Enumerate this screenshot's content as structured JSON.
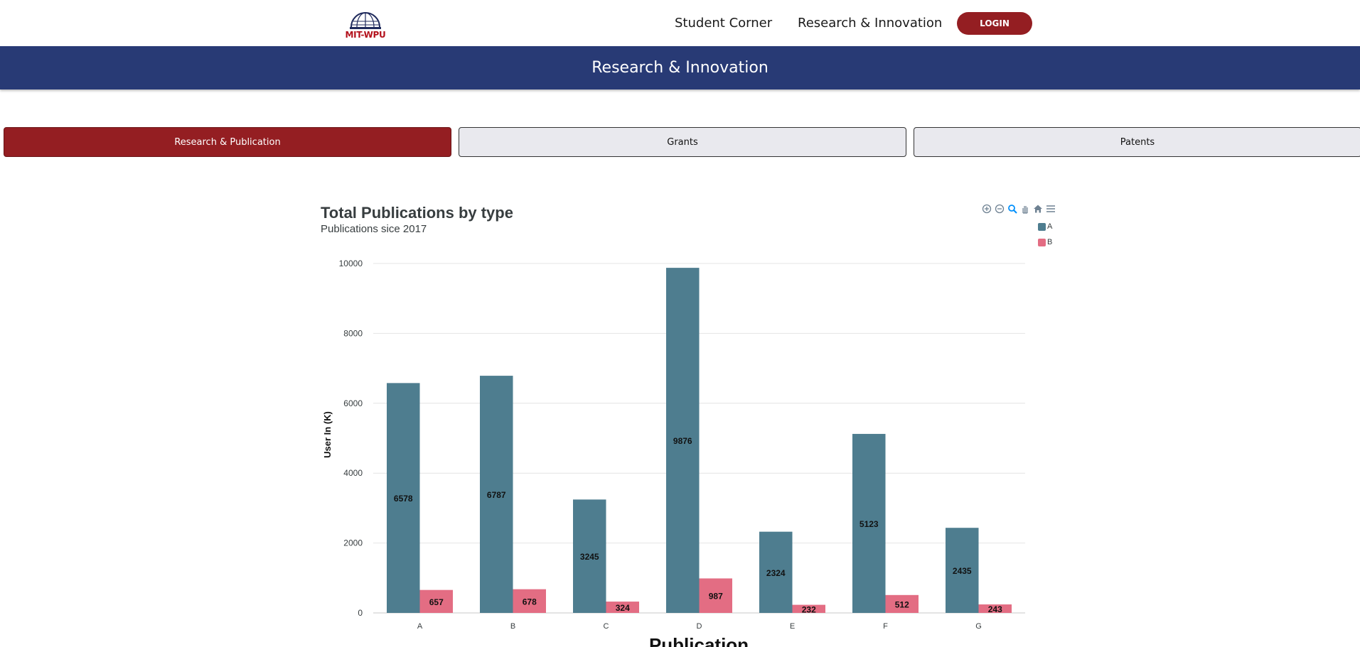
{
  "header": {
    "logo_text": "MIT-WPU",
    "nav": [
      {
        "label": "Student Corner"
      },
      {
        "label": "Research & Innovation"
      }
    ],
    "login_label": "LOGIN"
  },
  "banner": {
    "title": "Research & Innovation"
  },
  "tabs": [
    {
      "label": "Research & Publication",
      "active": true
    },
    {
      "label": "Grants",
      "active": false
    },
    {
      "label": "Patents",
      "active": false
    }
  ],
  "toolbar": {
    "icons": [
      "zoom-in-icon",
      "zoom-out-icon",
      "zoom-selection-icon",
      "pan-icon",
      "reset-zoom-home-icon",
      "menu-icon"
    ]
  },
  "colors": {
    "brand_red": "#941e22",
    "banner_blue": "#283a75",
    "series_a": "#4e7d8f",
    "series_b": "#e36d83"
  },
  "chart_data": {
    "type": "bar",
    "title": "Total Publications by type",
    "subtitle": "Publications sice 2017",
    "xlabel": "Publication",
    "ylabel": "User In (K)",
    "categories": [
      "A",
      "B",
      "C",
      "D",
      "E",
      "F",
      "G"
    ],
    "series": [
      {
        "name": "A",
        "values": [
          6578,
          6787,
          3245,
          9876,
          2324,
          5123,
          2435
        ]
      },
      {
        "name": "B",
        "values": [
          657,
          678,
          324,
          987,
          232,
          512,
          243
        ]
      }
    ],
    "ylim": [
      0,
      10000
    ],
    "yticks": [
      "0",
      "2000",
      "4000",
      "6000",
      "8000",
      "10000"
    ],
    "grid": true,
    "legend_position": "top-right",
    "data_labels": true
  }
}
